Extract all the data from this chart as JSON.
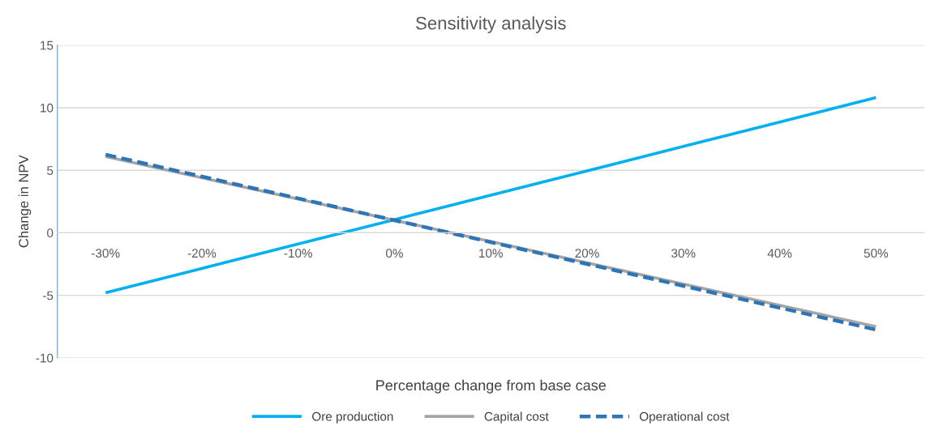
{
  "chart_data": {
    "type": "line",
    "title": "Sensitivity analysis",
    "xlabel": "Percentage change from base case",
    "ylabel": "Change in NPV",
    "categories": [
      "-30%",
      "-20%",
      "-10%",
      "0%",
      "10%",
      "20%",
      "30%",
      "40%",
      "50%"
    ],
    "series": [
      {
        "name": "Ore production",
        "color": "#00b0f0",
        "line_style": "solid",
        "values": [
          -4.8,
          -2.85,
          -0.9,
          1.05,
          3.0,
          4.95,
          6.9,
          8.85,
          10.8
        ]
      },
      {
        "name": "Capital cost",
        "color": "#a5a5a5",
        "line_style": "solid",
        "values": [
          6.1,
          4.4,
          2.7,
          1.0,
          -0.7,
          -2.4,
          -4.1,
          -5.8,
          -7.5
        ]
      },
      {
        "name": "Operational cost",
        "color": "#2e75b6",
        "line_style": "dashed",
        "values": [
          6.25,
          4.5,
          2.75,
          1.0,
          -0.75,
          -2.5,
          -4.25,
          -6.0,
          -7.75
        ]
      }
    ],
    "ylim": [
      -10,
      15
    ],
    "yticks": [
      -10,
      -5,
      0,
      5,
      10,
      15
    ],
    "grid": "y",
    "legend": "bottom",
    "marker": "none"
  }
}
